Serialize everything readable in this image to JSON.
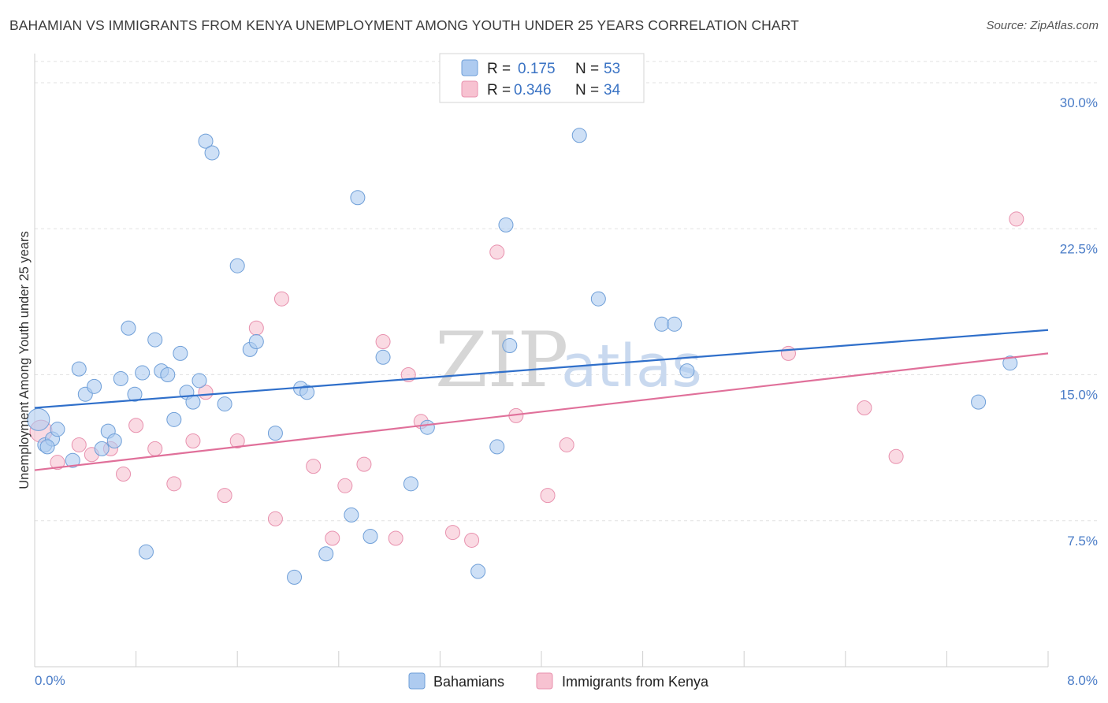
{
  "title": "BAHAMIAN VS IMMIGRANTS FROM KENYA UNEMPLOYMENT AMONG YOUTH UNDER 25 YEARS CORRELATION CHART",
  "source": "Source: ZipAtlas.com",
  "watermark": {
    "zip": "ZIP",
    "atlas": "atlas"
  },
  "legend_top": {
    "rows": [
      {
        "r_label": "R =",
        "r_value": "0.175",
        "n_label": "N =",
        "n_value": "53"
      },
      {
        "r_label": "R =",
        "r_value": "0.346",
        "n_label": "N =",
        "n_value": "34"
      }
    ]
  },
  "colors": {
    "blue_fill": "#aecbf0",
    "blue_stroke": "#6f9fd8",
    "blue_line": "#2f6fca",
    "pink_fill": "#f7c2d1",
    "pink_stroke": "#e891ae",
    "pink_line": "#e0709a",
    "grid": "#e2e2e2",
    "tick_text": "#4a7cc7"
  },
  "chart_data": {
    "type": "scatter",
    "title": "BAHAMIAN VS IMMIGRANTS FROM KENYA UNEMPLOYMENT AMONG YOUTH UNDER 25 YEARS CORRELATION CHART",
    "xlabel": "",
    "ylabel": "Unemployment Among Youth under 25 years",
    "xlim": [
      0,
      8
    ],
    "ylim": [
      0,
      31.5
    ],
    "x_tick_labels": [
      "0.0%",
      "8.0%"
    ],
    "y_ticks": [
      7.5,
      15.0,
      22.5,
      30.0
    ],
    "y_tick_labels": [
      "7.5%",
      "15.0%",
      "22.5%",
      "30.0%"
    ],
    "grid": true,
    "legend_placement": "top-center",
    "series": [
      {
        "name": "Bahamians",
        "r": 0.175,
        "n": 53,
        "trend": {
          "x": [
            0,
            8
          ],
          "y": [
            13.3,
            17.3
          ]
        },
        "points": [
          [
            0.03,
            12.7
          ],
          [
            0.08,
            11.4
          ],
          [
            0.14,
            11.7
          ],
          [
            0.18,
            12.2
          ],
          [
            0.3,
            10.6
          ],
          [
            0.35,
            15.3
          ],
          [
            0.4,
            14.0
          ],
          [
            0.47,
            14.4
          ],
          [
            0.53,
            11.2
          ],
          [
            0.58,
            12.1
          ],
          [
            0.63,
            11.6
          ],
          [
            0.68,
            14.8
          ],
          [
            0.74,
            17.4
          ],
          [
            0.79,
            14.0
          ],
          [
            0.85,
            15.1
          ],
          [
            0.88,
            5.9
          ],
          [
            0.95,
            16.8
          ],
          [
            1.0,
            15.2
          ],
          [
            1.05,
            15.0
          ],
          [
            1.1,
            12.7
          ],
          [
            1.15,
            16.1
          ],
          [
            1.2,
            14.1
          ],
          [
            1.25,
            13.6
          ],
          [
            1.3,
            14.7
          ],
          [
            1.35,
            27.0
          ],
          [
            1.4,
            26.4
          ],
          [
            1.5,
            13.5
          ],
          [
            1.6,
            20.6
          ],
          [
            1.7,
            16.3
          ],
          [
            1.75,
            16.7
          ],
          [
            1.9,
            12.0
          ],
          [
            2.05,
            4.6
          ],
          [
            2.1,
            14.3
          ],
          [
            2.15,
            14.1
          ],
          [
            2.3,
            5.8
          ],
          [
            2.5,
            7.8
          ],
          [
            2.55,
            24.1
          ],
          [
            2.65,
            6.7
          ],
          [
            2.75,
            15.9
          ],
          [
            2.97,
            9.4
          ],
          [
            3.1,
            12.3
          ],
          [
            3.5,
            4.9
          ],
          [
            3.65,
            11.3
          ],
          [
            3.72,
            22.7
          ],
          [
            3.75,
            16.5
          ],
          [
            4.3,
            27.3
          ],
          [
            4.45,
            18.9
          ],
          [
            4.95,
            17.6
          ],
          [
            5.05,
            17.6
          ],
          [
            5.15,
            15.2
          ],
          [
            7.45,
            13.6
          ],
          [
            7.7,
            15.6
          ],
          [
            0.1,
            11.3
          ]
        ]
      },
      {
        "name": "Immigrants from Kenya",
        "r": 0.346,
        "n": 34,
        "trend": {
          "x": [
            0,
            8
          ],
          "y": [
            10.1,
            16.1
          ]
        },
        "points": [
          [
            0.05,
            12.1
          ],
          [
            0.18,
            10.5
          ],
          [
            0.35,
            11.4
          ],
          [
            0.45,
            10.9
          ],
          [
            0.6,
            11.2
          ],
          [
            0.7,
            9.9
          ],
          [
            0.8,
            12.4
          ],
          [
            0.95,
            11.2
          ],
          [
            1.1,
            9.4
          ],
          [
            1.25,
            11.6
          ],
          [
            1.35,
            14.1
          ],
          [
            1.5,
            8.8
          ],
          [
            1.6,
            11.6
          ],
          [
            1.75,
            17.4
          ],
          [
            1.9,
            7.6
          ],
          [
            1.95,
            18.9
          ],
          [
            2.2,
            10.3
          ],
          [
            2.35,
            6.6
          ],
          [
            2.45,
            9.3
          ],
          [
            2.6,
            10.4
          ],
          [
            2.75,
            16.7
          ],
          [
            2.85,
            6.6
          ],
          [
            2.95,
            15.0
          ],
          [
            3.05,
            12.6
          ],
          [
            3.3,
            6.9
          ],
          [
            3.45,
            6.5
          ],
          [
            3.65,
            21.3
          ],
          [
            3.8,
            12.9
          ],
          [
            4.05,
            8.8
          ],
          [
            4.2,
            11.4
          ],
          [
            5.95,
            16.1
          ],
          [
            6.55,
            13.3
          ],
          [
            6.8,
            10.8
          ],
          [
            7.75,
            23.0
          ]
        ]
      }
    ]
  },
  "bottom_legend": {
    "items": [
      {
        "label": "Bahamians"
      },
      {
        "label": "Immigrants from Kenya"
      }
    ]
  }
}
